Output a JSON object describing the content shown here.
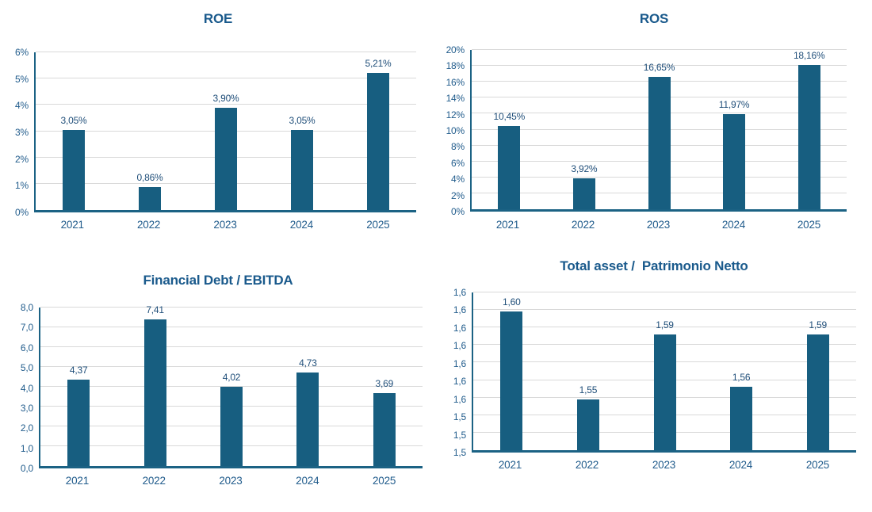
{
  "page": {
    "background": "#FFFFFF"
  },
  "colors": {
    "bar_fill": "#175E80",
    "axis_line": "#1B6284",
    "gridline": "#D9D9D9",
    "title_text": "#1A5A8C",
    "tick_text": "#215C8C",
    "data_label_text": "#1F4E79"
  },
  "chart_data": [
    {
      "id": "roe",
      "type": "bar",
      "title": "ROE",
      "categories": [
        "2021",
        "2022",
        "2023",
        "2024",
        "2025"
      ],
      "values": [
        3.05,
        0.86,
        3.9,
        3.05,
        5.21
      ],
      "data_labels": [
        "3,05%",
        "0,86%",
        "3,90%",
        "3,05%",
        "5,21%"
      ],
      "ylim": [
        0,
        6
      ],
      "ytick_labels": [
        "0%",
        "1%",
        "2%",
        "3%",
        "4%",
        "5%",
        "6%"
      ],
      "xlabel": "",
      "ylabel": "",
      "grid": true,
      "legend": false
    },
    {
      "id": "ros",
      "type": "bar",
      "title": "ROS",
      "categories": [
        "2021",
        "2022",
        "2023",
        "2024",
        "2025"
      ],
      "values": [
        10.45,
        3.92,
        16.65,
        11.97,
        18.16
      ],
      "data_labels": [
        "10,45%",
        "3,92%",
        "16,65%",
        "11,97%",
        "18,16%"
      ],
      "ylim": [
        0,
        20
      ],
      "ytick_labels": [
        "0%",
        "2%",
        "4%",
        "6%",
        "8%",
        "10%",
        "12%",
        "14%",
        "16%",
        "18%",
        "20%"
      ],
      "xlabel": "",
      "ylabel": "",
      "grid": true,
      "legend": false
    },
    {
      "id": "financial-debt-ebitda",
      "type": "bar",
      "title": "Financial Debt / EBITDA",
      "categories": [
        "2021",
        "2022",
        "2023",
        "2024",
        "2025"
      ],
      "values": [
        4.37,
        7.41,
        4.02,
        4.73,
        3.69
      ],
      "data_labels": [
        "4,37",
        "7,41",
        "4,02",
        "4,73",
        "3,69"
      ],
      "ylim": [
        0,
        8
      ],
      "ytick_labels": [
        "0,0",
        "1,0",
        "2,0",
        "3,0",
        "4,0",
        "5,0",
        "6,0",
        "7,0",
        "8,0"
      ],
      "xlabel": "",
      "ylabel": "",
      "grid": true,
      "legend": false
    },
    {
      "id": "total-asset-patrimonio-netto",
      "type": "bar",
      "title": "Total asset /  Patrimonio Netto",
      "categories": [
        "2021",
        "2022",
        "2023",
        "2024",
        "2025"
      ],
      "values": [
        1.6,
        1.55,
        1.59,
        1.56,
        1.59
      ],
      "plot_values": [
        1.599,
        1.549,
        1.586,
        1.556,
        1.586
      ],
      "data_labels": [
        "1,60",
        "1,55",
        "1,59",
        "1,56",
        "1,59"
      ],
      "ylim": [
        1.52,
        1.61
      ],
      "ytick_labels": [
        "1,5",
        "1,5",
        "1,5",
        "1,6",
        "1,6",
        "1,6",
        "1,6",
        "1,6",
        "1,6",
        "1,6"
      ],
      "xlabel": "",
      "ylabel": "",
      "grid": true,
      "legend": false
    }
  ]
}
